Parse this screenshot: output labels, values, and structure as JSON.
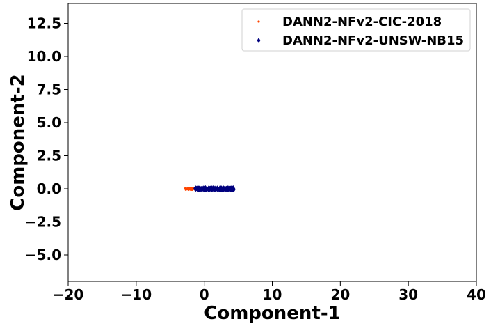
{
  "chart_data": {
    "type": "scatter",
    "title": "",
    "xlabel": "Component-1",
    "ylabel": "Component-2",
    "xlim": [
      -20,
      40
    ],
    "ylim": [
      -7,
      14
    ],
    "x_ticks": [
      -20,
      -10,
      0,
      10,
      20,
      30,
      40
    ],
    "x_tick_labels": [
      "−20",
      "−10",
      "0",
      "10",
      "20",
      "30",
      "40"
    ],
    "y_ticks": [
      -5.0,
      -2.5,
      0.0,
      2.5,
      5.0,
      7.5,
      10.0,
      12.5
    ],
    "y_tick_labels": [
      "−5.0",
      "−2.5",
      "0.0",
      "2.5",
      "5.0",
      "7.5",
      "10.0",
      "12.5"
    ],
    "grid": false,
    "legend_position": "top-right",
    "series": [
      {
        "name": "DANN2-NFv2-CIC-2018",
        "color": "#ff4500",
        "marker": "dot",
        "x_range": [
          -2.8,
          3.2
        ],
        "y_range": [
          -0.08,
          0.08
        ]
      },
      {
        "name": "DANN2-NFv2-UNSW-NB15",
        "color": "#00007f",
        "marker": "diamond",
        "x_range": [
          -1.4,
          4.4
        ],
        "y_range": [
          -0.1,
          0.1
        ]
      }
    ]
  }
}
